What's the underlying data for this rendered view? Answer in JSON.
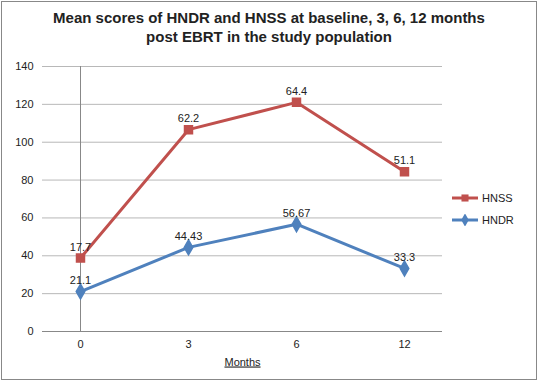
{
  "chart_data": {
    "type": "line",
    "title": "Mean scores of HNDR and HNSS at baseline, 3, 6, 12 months post EBRT in the study population",
    "x_label": "Months",
    "categories": [
      "0",
      "3",
      "6",
      "12"
    ],
    "series": [
      {
        "name": "HNDR",
        "color": "#4f81bd",
        "marker": "diamond",
        "values": [
          21.1,
          44.43,
          56.67,
          33.3
        ]
      },
      {
        "name": "HNSS",
        "color": "#c0504d",
        "marker": "square",
        "values": [
          17.7,
          62.2,
          64.4,
          51.1
        ]
      }
    ],
    "stacked": true,
    "data_labels": true,
    "ylim": [
      0,
      140
    ],
    "yticks": [
      0,
      20,
      40,
      60,
      80,
      100,
      120,
      140
    ],
    "grid": true,
    "legend": "right"
  }
}
